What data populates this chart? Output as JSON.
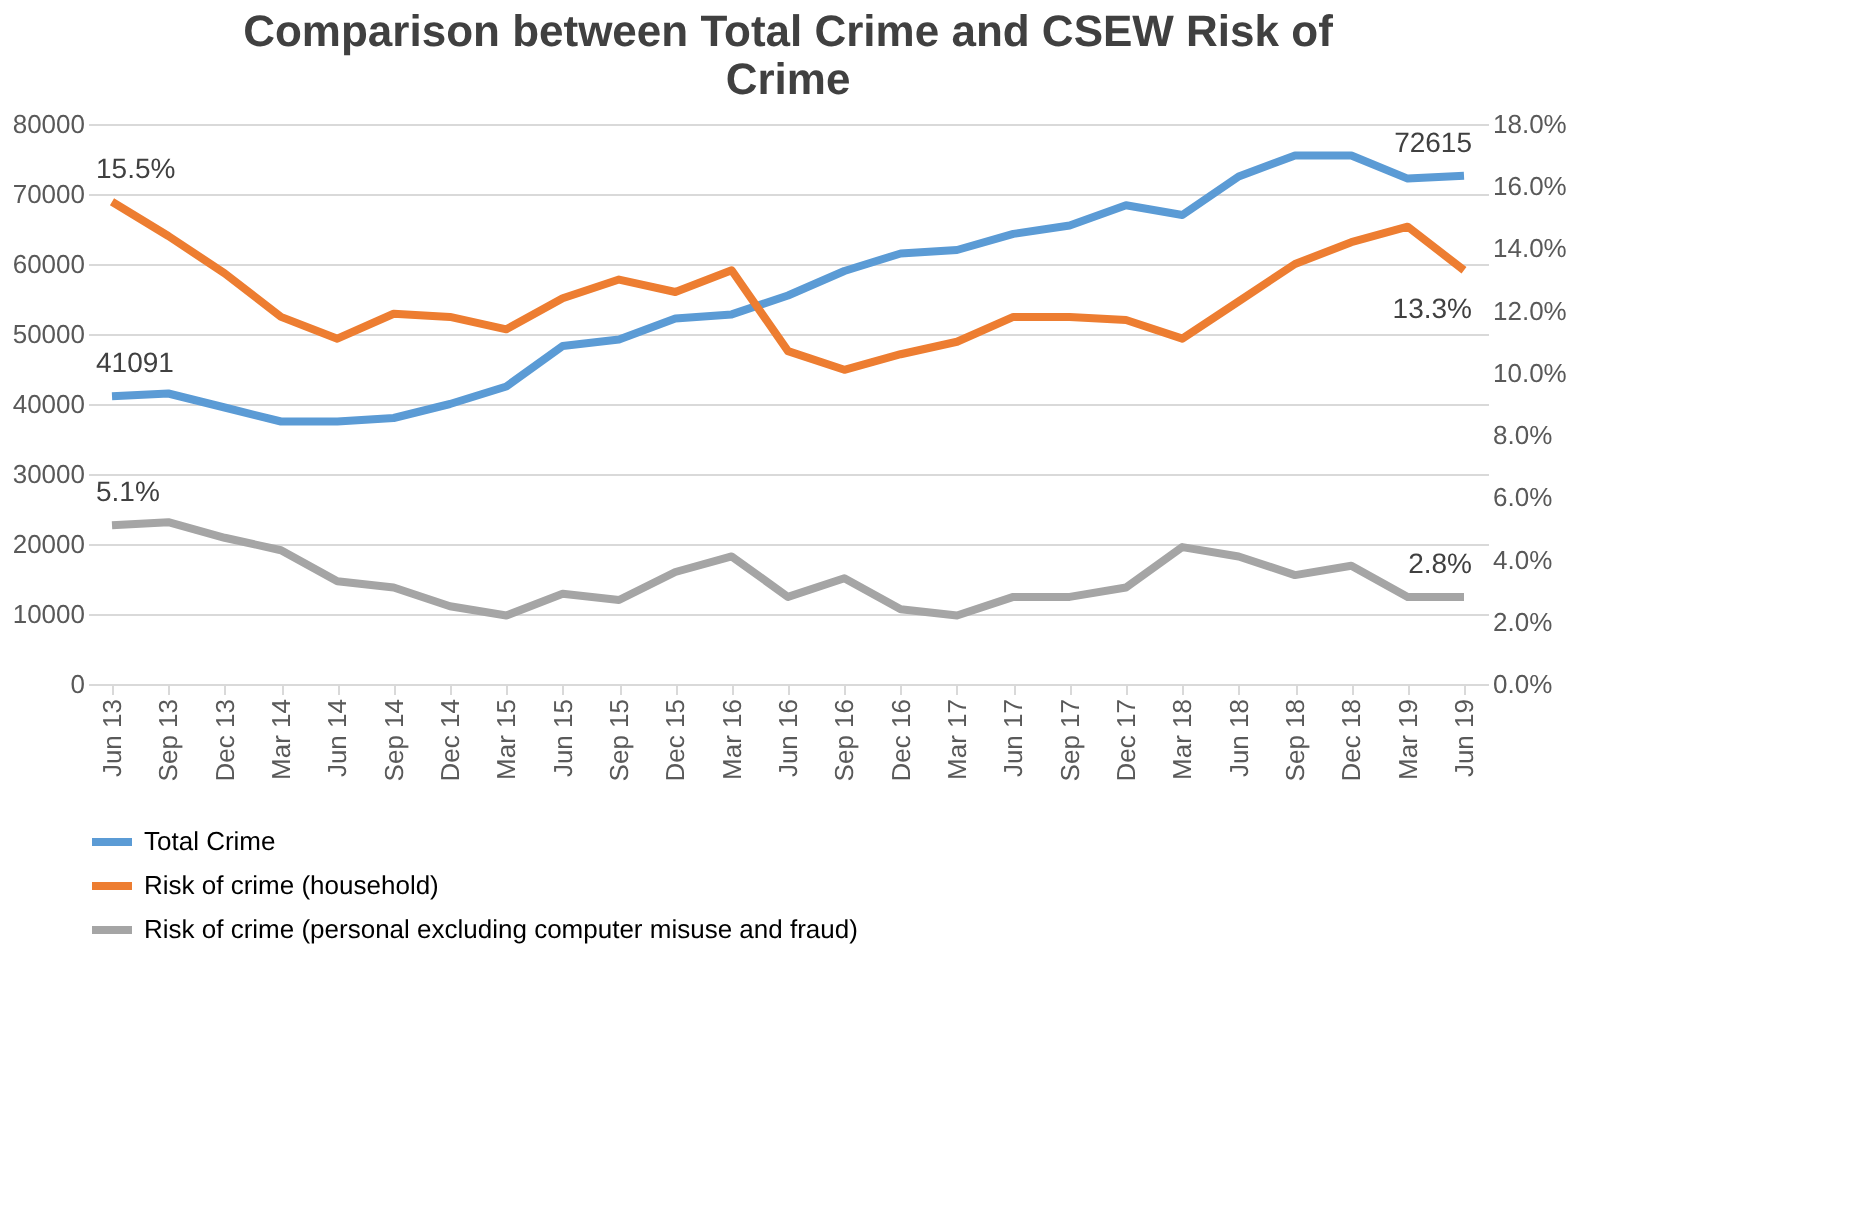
{
  "chart_data": {
    "type": "line",
    "title": "Comparison between Total Crime and CSEW Risk of Crime",
    "categories": [
      "Jun 13",
      "Sep 13",
      "Dec 13",
      "Mar 14",
      "Jun 14",
      "Sep 14",
      "Dec 14",
      "Mar 15",
      "Jun 15",
      "Sep 15",
      "Dec 15",
      "Mar 16",
      "Jun 16",
      "Sep 16",
      "Dec 16",
      "Mar 17",
      "Jun 17",
      "Sep 17",
      "Dec 17",
      "Mar 18",
      "Jun 18",
      "Sep 18",
      "Dec 18",
      "Mar 19",
      "Jun 19"
    ],
    "series": [
      {
        "name": "Total Crime",
        "color": "#5b9bd5",
        "values": [
          41091,
          41500,
          39500,
          37500,
          37500,
          38000,
          40000,
          42500,
          48300,
          49200,
          52200,
          52800,
          55500,
          59000,
          61500,
          62000,
          64300,
          65500,
          68400,
          67000,
          72500,
          75500,
          75500,
          72200,
          72615
        ],
        "value_labels": [
          "41091",
          null,
          null,
          null,
          null,
          null,
          null,
          null,
          null,
          null,
          null,
          null,
          null,
          null,
          null,
          null,
          null,
          null,
          null,
          null,
          null,
          null,
          null,
          null,
          "72615"
        ]
      },
      {
        "name": "Risk of crime (household)",
        "color": "#ed7d31",
        "axis": "y2",
        "values": [
          15.5,
          14.4,
          13.2,
          11.8,
          11.1,
          11.9,
          11.8,
          11.4,
          12.4,
          13.0,
          12.6,
          13.3,
          10.7,
          10.1,
          10.6,
          11.0,
          11.8,
          11.8,
          11.7,
          11.1,
          12.3,
          13.5,
          14.2,
          14.7,
          13.3
        ],
        "value_labels": [
          "15.5%",
          null,
          null,
          null,
          null,
          null,
          null,
          null,
          null,
          null,
          null,
          null,
          null,
          null,
          null,
          null,
          null,
          null,
          null,
          null,
          null,
          null,
          null,
          null,
          "13.3%"
        ]
      },
      {
        "name": "Risk of crime (personal excluding computer misuse and fraud)",
        "color": "#a5a5a5",
        "axis": "y2",
        "values": [
          5.1,
          5.2,
          4.7,
          4.3,
          3.3,
          3.1,
          2.5,
          2.2,
          2.9,
          2.7,
          3.6,
          4.1,
          2.8,
          3.4,
          2.4,
          2.2,
          2.8,
          2.8,
          3.1,
          4.4,
          4.1,
          3.5,
          3.8,
          2.8,
          2.8
        ],
        "value_labels": [
          "5.1%",
          null,
          null,
          null,
          null,
          null,
          null,
          null,
          null,
          null,
          null,
          null,
          null,
          null,
          null,
          null,
          null,
          null,
          null,
          null,
          null,
          null,
          null,
          null,
          "2.8%"
        ]
      }
    ],
    "ylim": [
      0,
      80000
    ],
    "yticks": [
      0,
      10000,
      20000,
      30000,
      40000,
      50000,
      60000,
      70000,
      80000
    ],
    "y2lim": [
      0,
      18
    ],
    "y2ticks": [
      {
        "value": 0,
        "label": "0.0%"
      },
      {
        "value": 2,
        "label": "2.0%"
      },
      {
        "value": 4,
        "label": "4.0%"
      },
      {
        "value": 6,
        "label": "6.0%"
      },
      {
        "value": 8,
        "label": "8.0%"
      },
      {
        "value": 10,
        "label": "10.0%"
      },
      {
        "value": 12,
        "label": "12.0%"
      },
      {
        "value": 14,
        "label": "14.0%"
      },
      {
        "value": 16,
        "label": "16.0%"
      },
      {
        "value": 18,
        "label": "18.0%"
      }
    ],
    "grid": "y",
    "legend": "bottom",
    "marker": "none",
    "line_style": "solid"
  }
}
